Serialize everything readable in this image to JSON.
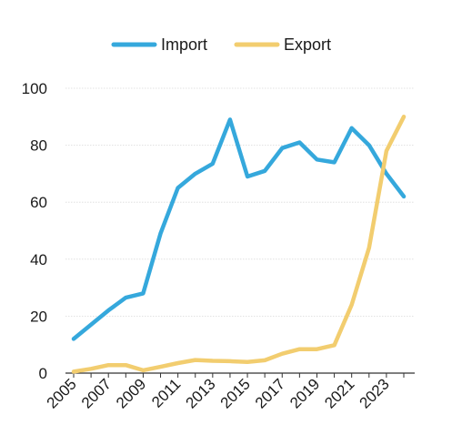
{
  "chart_data": {
    "type": "line",
    "title": "",
    "xlabel": "",
    "ylabel": "",
    "x": [
      2005,
      2006,
      2007,
      2008,
      2009,
      2010,
      2011,
      2012,
      2013,
      2014,
      2015,
      2016,
      2017,
      2018,
      2019,
      2020,
      2021,
      2022,
      2023,
      2024
    ],
    "x_tick_labels": [
      "2005",
      "2007",
      "2009",
      "2011",
      "2013",
      "2015",
      "2017",
      "2019",
      "2021",
      "2023"
    ],
    "y_ticks": [
      0,
      20,
      40,
      60,
      80,
      100
    ],
    "ylim": [
      0,
      100
    ],
    "grid": true,
    "legend_position": "top",
    "series": [
      {
        "name": "Import",
        "color": "#35a8dc",
        "values": [
          12,
          17,
          22,
          26.5,
          28,
          49,
          65,
          70,
          73.5,
          89,
          69,
          71,
          79,
          81,
          75,
          74,
          86,
          80,
          70,
          62
        ]
      },
      {
        "name": "Export",
        "color": "#f2cd6f",
        "values": [
          0.5,
          1.5,
          2.8,
          2.8,
          1,
          2.2,
          3.5,
          4.6,
          4.3,
          4.2,
          3.9,
          4.5,
          6.8,
          8.4,
          8.4,
          9.8,
          24,
          44,
          78,
          90
        ]
      }
    ]
  }
}
